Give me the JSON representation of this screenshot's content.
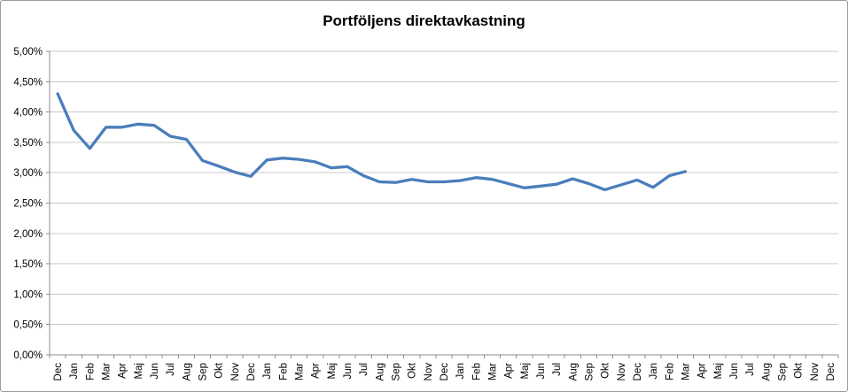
{
  "chart_data": {
    "type": "line",
    "title": "Portföljens direktavkastning",
    "xlabel": "",
    "ylabel": "",
    "categories": [
      "Dec",
      "Jan",
      "Feb",
      "Mar",
      "Apr",
      "Maj",
      "Jun",
      "Jul",
      "Aug",
      "Sep",
      "Okt",
      "Nov",
      "Dec",
      "Jan",
      "Feb",
      "Mar",
      "Apr",
      "Maj",
      "Jun",
      "Jul",
      "Aug",
      "Sep",
      "Okt",
      "Nov",
      "Dec",
      "Jan",
      "Feb",
      "Mar",
      "Apr",
      "Maj",
      "Jun",
      "Jul",
      "Aug",
      "Sep",
      "Okt",
      "Nov",
      "Dec",
      "Jan",
      "Feb",
      "Mar",
      "Apr",
      "Maj",
      "Jun",
      "Jul",
      "Aug",
      "Sep",
      "Okt",
      "Nov",
      "Dec"
    ],
    "values": [
      4.3,
      3.7,
      3.4,
      3.75,
      3.75,
      3.8,
      3.78,
      3.6,
      3.55,
      3.2,
      3.11,
      3.01,
      2.94,
      3.21,
      3.24,
      3.22,
      3.18,
      3.08,
      3.1,
      2.95,
      2.85,
      2.84,
      2.89,
      2.85,
      2.85,
      2.87,
      2.92,
      2.89,
      2.82,
      2.75,
      2.78,
      2.81,
      2.9,
      2.82,
      2.72,
      2.8,
      2.88,
      2.76,
      2.95,
      3.02,
      null,
      null,
      null,
      null,
      null,
      null,
      null,
      null,
      null
    ],
    "ylim": [
      0,
      5
    ],
    "ytick_step": 0.5,
    "ytick_labels_top_to_bottom": [
      "5,00%",
      "4,50%",
      "4,00%",
      "3,50%",
      "3,00%",
      "2,50%",
      "2,00%",
      "1,50%",
      "1,00%",
      "0,50%",
      "0,00%"
    ],
    "grid": true,
    "legend": "none",
    "x_label_rotation_deg": -90
  },
  "colors": {
    "line": "#4A7EBB",
    "gridline": "#C8C8C8",
    "axis": "#8E8E8E",
    "tick": "#8E8E8E",
    "text": "#000000",
    "frame_border": "#9D9D9D",
    "background": "#FFFFFF"
  }
}
